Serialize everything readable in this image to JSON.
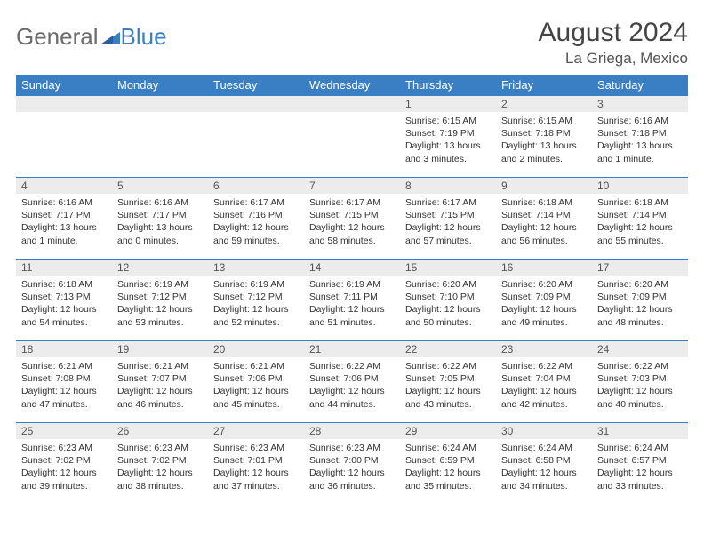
{
  "logo": {
    "part1": "General",
    "part2": "Blue"
  },
  "title": "August 2024",
  "location": "La Griega, Mexico",
  "colors": {
    "header_bg": "#3a7fc4",
    "header_text": "#ffffff",
    "daynum_bg": "#ececec",
    "border": "#3a7fc4",
    "logo_gray": "#6b6b6b",
    "logo_blue": "#3a7fc4"
  },
  "weekdays": [
    "Sunday",
    "Monday",
    "Tuesday",
    "Wednesday",
    "Thursday",
    "Friday",
    "Saturday"
  ],
  "weeks": [
    [
      {
        "n": "",
        "sun": "",
        "set": "",
        "day": ""
      },
      {
        "n": "",
        "sun": "",
        "set": "",
        "day": ""
      },
      {
        "n": "",
        "sun": "",
        "set": "",
        "day": ""
      },
      {
        "n": "",
        "sun": "",
        "set": "",
        "day": ""
      },
      {
        "n": "1",
        "sun": "Sunrise: 6:15 AM",
        "set": "Sunset: 7:19 PM",
        "day": "Daylight: 13 hours and 3 minutes."
      },
      {
        "n": "2",
        "sun": "Sunrise: 6:15 AM",
        "set": "Sunset: 7:18 PM",
        "day": "Daylight: 13 hours and 2 minutes."
      },
      {
        "n": "3",
        "sun": "Sunrise: 6:16 AM",
        "set": "Sunset: 7:18 PM",
        "day": "Daylight: 13 hours and 1 minute."
      }
    ],
    [
      {
        "n": "4",
        "sun": "Sunrise: 6:16 AM",
        "set": "Sunset: 7:17 PM",
        "day": "Daylight: 13 hours and 1 minute."
      },
      {
        "n": "5",
        "sun": "Sunrise: 6:16 AM",
        "set": "Sunset: 7:17 PM",
        "day": "Daylight: 13 hours and 0 minutes."
      },
      {
        "n": "6",
        "sun": "Sunrise: 6:17 AM",
        "set": "Sunset: 7:16 PM",
        "day": "Daylight: 12 hours and 59 minutes."
      },
      {
        "n": "7",
        "sun": "Sunrise: 6:17 AM",
        "set": "Sunset: 7:15 PM",
        "day": "Daylight: 12 hours and 58 minutes."
      },
      {
        "n": "8",
        "sun": "Sunrise: 6:17 AM",
        "set": "Sunset: 7:15 PM",
        "day": "Daylight: 12 hours and 57 minutes."
      },
      {
        "n": "9",
        "sun": "Sunrise: 6:18 AM",
        "set": "Sunset: 7:14 PM",
        "day": "Daylight: 12 hours and 56 minutes."
      },
      {
        "n": "10",
        "sun": "Sunrise: 6:18 AM",
        "set": "Sunset: 7:14 PM",
        "day": "Daylight: 12 hours and 55 minutes."
      }
    ],
    [
      {
        "n": "11",
        "sun": "Sunrise: 6:18 AM",
        "set": "Sunset: 7:13 PM",
        "day": "Daylight: 12 hours and 54 minutes."
      },
      {
        "n": "12",
        "sun": "Sunrise: 6:19 AM",
        "set": "Sunset: 7:12 PM",
        "day": "Daylight: 12 hours and 53 minutes."
      },
      {
        "n": "13",
        "sun": "Sunrise: 6:19 AM",
        "set": "Sunset: 7:12 PM",
        "day": "Daylight: 12 hours and 52 minutes."
      },
      {
        "n": "14",
        "sun": "Sunrise: 6:19 AM",
        "set": "Sunset: 7:11 PM",
        "day": "Daylight: 12 hours and 51 minutes."
      },
      {
        "n": "15",
        "sun": "Sunrise: 6:20 AM",
        "set": "Sunset: 7:10 PM",
        "day": "Daylight: 12 hours and 50 minutes."
      },
      {
        "n": "16",
        "sun": "Sunrise: 6:20 AM",
        "set": "Sunset: 7:09 PM",
        "day": "Daylight: 12 hours and 49 minutes."
      },
      {
        "n": "17",
        "sun": "Sunrise: 6:20 AM",
        "set": "Sunset: 7:09 PM",
        "day": "Daylight: 12 hours and 48 minutes."
      }
    ],
    [
      {
        "n": "18",
        "sun": "Sunrise: 6:21 AM",
        "set": "Sunset: 7:08 PM",
        "day": "Daylight: 12 hours and 47 minutes."
      },
      {
        "n": "19",
        "sun": "Sunrise: 6:21 AM",
        "set": "Sunset: 7:07 PM",
        "day": "Daylight: 12 hours and 46 minutes."
      },
      {
        "n": "20",
        "sun": "Sunrise: 6:21 AM",
        "set": "Sunset: 7:06 PM",
        "day": "Daylight: 12 hours and 45 minutes."
      },
      {
        "n": "21",
        "sun": "Sunrise: 6:22 AM",
        "set": "Sunset: 7:06 PM",
        "day": "Daylight: 12 hours and 44 minutes."
      },
      {
        "n": "22",
        "sun": "Sunrise: 6:22 AM",
        "set": "Sunset: 7:05 PM",
        "day": "Daylight: 12 hours and 43 minutes."
      },
      {
        "n": "23",
        "sun": "Sunrise: 6:22 AM",
        "set": "Sunset: 7:04 PM",
        "day": "Daylight: 12 hours and 42 minutes."
      },
      {
        "n": "24",
        "sun": "Sunrise: 6:22 AM",
        "set": "Sunset: 7:03 PM",
        "day": "Daylight: 12 hours and 40 minutes."
      }
    ],
    [
      {
        "n": "25",
        "sun": "Sunrise: 6:23 AM",
        "set": "Sunset: 7:02 PM",
        "day": "Daylight: 12 hours and 39 minutes."
      },
      {
        "n": "26",
        "sun": "Sunrise: 6:23 AM",
        "set": "Sunset: 7:02 PM",
        "day": "Daylight: 12 hours and 38 minutes."
      },
      {
        "n": "27",
        "sun": "Sunrise: 6:23 AM",
        "set": "Sunset: 7:01 PM",
        "day": "Daylight: 12 hours and 37 minutes."
      },
      {
        "n": "28",
        "sun": "Sunrise: 6:23 AM",
        "set": "Sunset: 7:00 PM",
        "day": "Daylight: 12 hours and 36 minutes."
      },
      {
        "n": "29",
        "sun": "Sunrise: 6:24 AM",
        "set": "Sunset: 6:59 PM",
        "day": "Daylight: 12 hours and 35 minutes."
      },
      {
        "n": "30",
        "sun": "Sunrise: 6:24 AM",
        "set": "Sunset: 6:58 PM",
        "day": "Daylight: 12 hours and 34 minutes."
      },
      {
        "n": "31",
        "sun": "Sunrise: 6:24 AM",
        "set": "Sunset: 6:57 PM",
        "day": "Daylight: 12 hours and 33 minutes."
      }
    ]
  ]
}
